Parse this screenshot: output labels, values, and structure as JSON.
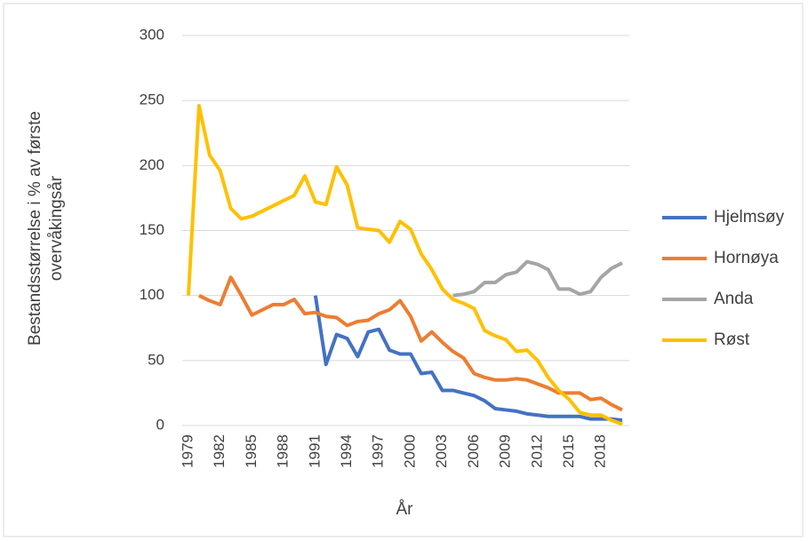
{
  "chart_data": {
    "type": "line",
    "y_label": "Bestandsstørrelse i % av første overvåkingsår",
    "x_label": "År",
    "x": [
      1979,
      1980,
      1981,
      1982,
      1983,
      1984,
      1985,
      1986,
      1987,
      1988,
      1989,
      1990,
      1991,
      1992,
      1993,
      1994,
      1995,
      1996,
      1997,
      1998,
      1999,
      2000,
      2001,
      2002,
      2003,
      2004,
      2005,
      2006,
      2007,
      2008,
      2009,
      2010,
      2011,
      2012,
      2013,
      2014,
      2015,
      2016,
      2017,
      2018,
      2019,
      2020
    ],
    "xlim": [
      1979,
      2020
    ],
    "xticks": [
      1979,
      1982,
      1985,
      1988,
      1991,
      1994,
      1997,
      2000,
      2003,
      2006,
      2009,
      2012,
      2015,
      2018
    ],
    "ylim": [
      0,
      300
    ],
    "yticks": [
      0,
      50,
      100,
      150,
      200,
      250,
      300
    ],
    "grid": true,
    "legend": "right",
    "series": [
      {
        "name": "Hjelmsøy",
        "color": "#4472c4",
        "values": [
          null,
          null,
          null,
          null,
          null,
          null,
          null,
          null,
          null,
          null,
          null,
          null,
          100,
          47,
          70,
          67,
          53,
          72,
          74,
          58,
          55,
          55,
          40,
          41,
          27,
          27,
          25,
          23,
          19,
          13,
          12,
          11,
          9,
          8,
          7,
          7,
          7,
          7,
          5,
          5,
          5,
          4
        ]
      },
      {
        "name": "Hornøya",
        "color": "#ed7d31",
        "values": [
          null,
          100,
          96,
          93,
          114,
          100,
          85,
          89,
          93,
          93,
          97,
          86,
          87,
          84,
          83,
          77,
          80,
          81,
          86,
          89,
          96,
          84,
          65,
          72,
          64,
          57,
          52,
          40,
          37,
          35,
          35,
          36,
          35,
          32,
          29,
          25,
          25,
          25,
          20,
          21,
          16,
          12
        ]
      },
      {
        "name": "Anda",
        "color": "#a5a5a5",
        "values": [
          null,
          null,
          null,
          null,
          null,
          null,
          null,
          null,
          null,
          null,
          null,
          null,
          null,
          null,
          null,
          null,
          null,
          null,
          null,
          null,
          null,
          null,
          null,
          null,
          null,
          100,
          101,
          103,
          110,
          110,
          116,
          118,
          126,
          124,
          120,
          105,
          105,
          101,
          103,
          114,
          121,
          125
        ]
      },
      {
        "name": "Røst",
        "color": "#ffc000",
        "values": [
          100,
          246,
          208,
          196,
          167,
          159,
          161,
          165,
          169,
          173,
          177,
          192,
          172,
          170,
          199,
          185,
          152,
          151,
          150,
          141,
          157,
          151,
          132,
          120,
          105,
          97,
          94,
          90,
          73,
          69,
          66,
          57,
          58,
          50,
          37,
          27,
          20,
          10,
          8,
          8,
          4,
          1
        ]
      }
    ]
  }
}
